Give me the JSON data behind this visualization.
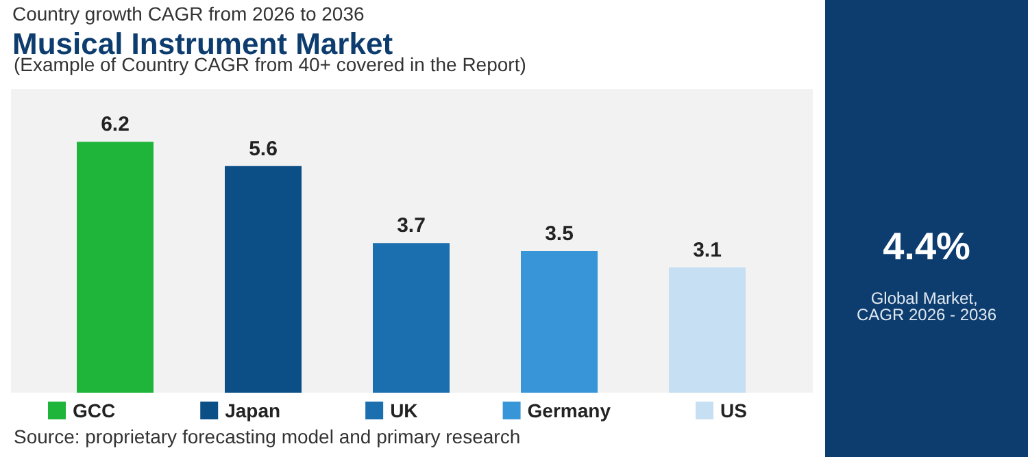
{
  "chart_data": {
    "type": "bar",
    "title": "Musical Instrument Market",
    "subtitle": "Country growth CAGR from 2026 to 2036",
    "categories": [
      null,
      null,
      null,
      null,
      null
    ],
    "series": [
      {
        "name": "GCC",
        "color": "#1fb53b",
        "values": [
          6.2,
          null,
          null,
          null,
          null
        ]
      },
      {
        "name": "Japan",
        "color": "#0c4f86",
        "values": [
          null,
          5.6,
          null,
          null,
          null
        ]
      },
      {
        "name": "UK",
        "color": "#1b6fae",
        "values": [
          null,
          null,
          3.7,
          null,
          null
        ]
      },
      {
        "name": "Germany",
        "color": "#3896d8",
        "values": [
          null,
          null,
          null,
          3.5,
          null
        ]
      },
      {
        "name": "US",
        "color": "#c6dff2",
        "values": [
          null,
          null,
          null,
          null,
          3.1
        ]
      }
    ],
    "stacked": true,
    "data_labels": true,
    "legend": "bottom",
    "grid": false,
    "tick_labels": false,
    "annotations": [
      "(Example of Country CAGR from 40+ covered in the Report)",
      "4.4%",
      "Global Market, CAGR 2026 - 2036",
      "Source: proprietary forecasting model and primary research"
    ]
  }
}
